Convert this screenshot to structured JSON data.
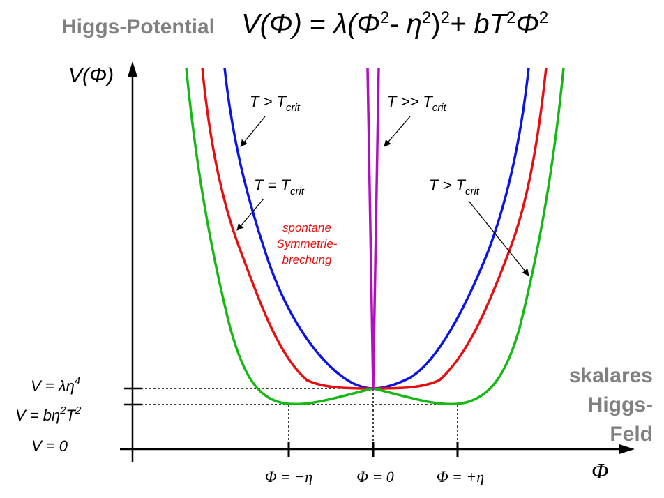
{
  "title": {
    "label": "Higgs-Potential",
    "formula": {
      "lhs": "V(Φ)",
      "eq": " = ",
      "lambda": "λ",
      "open": "(Φ",
      "sq1": "2",
      "minus": "- η",
      "sq2": "2",
      "close": ")",
      "sq3": "2",
      "plus": "+ bT",
      "sq4": "2",
      "phi": "Φ",
      "sq5": "2"
    }
  },
  "axes": {
    "y_label": "V(Φ)",
    "x_label": "Φ"
  },
  "level_labels": {
    "v_lambda_eta4": {
      "main": "V = λη",
      "sup": "4"
    },
    "v_b_eta2_t2": {
      "main": "V = bη",
      "sup1": "2",
      "mid": "T",
      "sup2": "2"
    },
    "v_zero": "V = 0"
  },
  "tick_labels": [
    "Φ = −η",
    "Φ = 0",
    "Φ = +η"
  ],
  "curve_labels": {
    "blue": {
      "base": "T > T",
      "sub": "crit"
    },
    "purple": {
      "base": "T >> T",
      "sub": "crit"
    },
    "red": {
      "base": "T = T",
      "sub": "crit"
    },
    "green": {
      "base": "T > T",
      "sub": "crit"
    }
  },
  "annotation": [
    "spontane",
    "Symmetrie-",
    "brechung"
  ],
  "side_label": [
    "skalares",
    "Higgs-",
    "Feld"
  ],
  "colors": {
    "blue": "#0a14e6",
    "red": "#e60f0f",
    "green": "#16b816",
    "purple": "#b010c0",
    "annotation": "#e60f0f",
    "gray_text": "#808080"
  }
}
